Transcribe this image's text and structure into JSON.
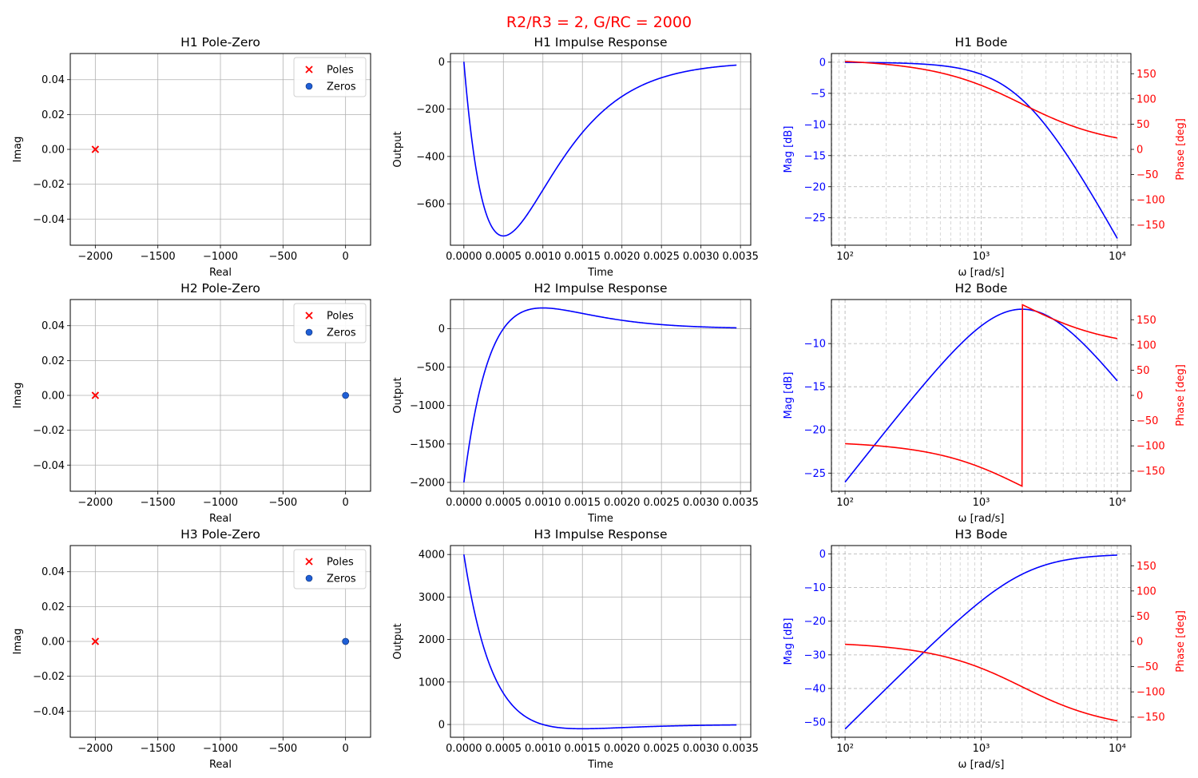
{
  "suptitle": "R2/R3 = 2, G/RC = 2000",
  "colors": {
    "mag": "#0000ff",
    "phase": "#ff0000",
    "pole": "#ff0000",
    "zero": "#1f5fd6",
    "grid": "#b0b0b0"
  },
  "chart_data": [
    {
      "id": "h1-pz",
      "type": "scatter",
      "title": "H1 Pole-Zero",
      "xlabel": "Real",
      "ylabel": "Imag",
      "xlim": [
        -2200,
        200
      ],
      "ylim": [
        -0.055,
        0.055
      ],
      "xticks": [
        -2000,
        -1500,
        -1000,
        -500,
        0
      ],
      "yticks": [
        -0.04,
        -0.02,
        0.0,
        0.02,
        0.04
      ],
      "xtick_labels": [
        "−2000",
        "−1500",
        "−1000",
        "−500",
        "0"
      ],
      "ytick_labels": [
        "−0.04",
        "−0.02",
        "0.00",
        "0.02",
        "0.04"
      ],
      "poles": [
        [
          -2000,
          0
        ],
        [
          -2000,
          0
        ]
      ],
      "zeros": [],
      "legend": {
        "placement": "top-right",
        "entries": [
          "Poles",
          "Zeros"
        ]
      },
      "grid": true
    },
    {
      "id": "h1-imp",
      "type": "line",
      "title": "H1 Impulse Response",
      "xlabel": "Time",
      "ylabel": "Output",
      "xlim": [
        -0.00017,
        0.00363
      ],
      "ylim": [
        -775,
        35
      ],
      "xticks": [
        0,
        0.0005,
        0.001,
        0.0015,
        0.002,
        0.0025,
        0.003,
        0.0035
      ],
      "xtick_labels": [
        "0.0000",
        "0.0005",
        "0.0010",
        "0.0015",
        "0.0020",
        "0.0025",
        "0.0030",
        "0.0035"
      ],
      "yticks": [
        -600,
        -400,
        -200,
        0
      ],
      "ytick_labels": [
        "−600",
        "−400",
        "−200",
        "0"
      ],
      "series": [
        {
          "fn": "-4e6*t*exp(-2000*t)",
          "t_end": 0.00345
        }
      ],
      "grid": true
    },
    {
      "id": "h1-bode",
      "type": "line",
      "title": "H1 Bode",
      "xlabel": "ω [rad/s]",
      "ylabel": "Mag [dB]",
      "y2label": "Phase [deg]",
      "xlog": true,
      "xlim": [
        79.4,
        12589
      ],
      "xticks": [
        100,
        1000,
        10000
      ],
      "xtick_labels": [
        "10²",
        "10³",
        "10⁴"
      ],
      "ylim": [
        -29.4,
        1.4
      ],
      "yticks": [
        -25,
        -20,
        -15,
        -10,
        -5,
        0
      ],
      "ytick_labels": [
        "−25",
        "−20",
        "−15",
        "−10",
        "−5",
        "0"
      ],
      "y2lim": [
        -190,
        190
      ],
      "y2ticks": [
        -150,
        -100,
        -50,
        0,
        50,
        100,
        150
      ],
      "y2tick_labels": [
        "−150",
        "−100",
        "−50",
        "0",
        "50",
        "100",
        "150"
      ],
      "series": [
        {
          "name": "",
          "axis": "y",
          "fn": "-20*log10(1+(w/2000)^2)"
        },
        {
          "name": "",
          "axis": "y2",
          "fn": "180-2*atan(w/2000)"
        }
      ],
      "grid": true
    },
    {
      "id": "h2-pz",
      "type": "scatter",
      "title": "H2 Pole-Zero",
      "xlabel": "Real",
      "ylabel": "Imag",
      "xlim": [
        -2200,
        200
      ],
      "ylim": [
        -0.055,
        0.055
      ],
      "xticks": [
        -2000,
        -1500,
        -1000,
        -500,
        0
      ],
      "yticks": [
        -0.04,
        -0.02,
        0.0,
        0.02,
        0.04
      ],
      "xtick_labels": [
        "−2000",
        "−1500",
        "−1000",
        "−500",
        "0"
      ],
      "ytick_labels": [
        "−0.04",
        "−0.02",
        "0.00",
        "0.02",
        "0.04"
      ],
      "poles": [
        [
          -2000,
          0
        ],
        [
          -2000,
          0
        ]
      ],
      "zeros": [
        [
          0,
          0
        ]
      ],
      "legend": {
        "placement": "top-right",
        "entries": [
          "Poles",
          "Zeros"
        ]
      },
      "grid": true
    },
    {
      "id": "h2-imp",
      "type": "line",
      "title": "H2 Impulse Response",
      "xlabel": "Time",
      "ylabel": "Output",
      "xlim": [
        -0.00017,
        0.00363
      ],
      "ylim": [
        -2115,
        380
      ],
      "xticks": [
        0,
        0.0005,
        0.001,
        0.0015,
        0.002,
        0.0025,
        0.003,
        0.0035
      ],
      "xtick_labels": [
        "0.0000",
        "0.0005",
        "0.0010",
        "0.0015",
        "0.0020",
        "0.0025",
        "0.0030",
        "0.0035"
      ],
      "yticks": [
        -2000,
        -1500,
        -1000,
        -500,
        0
      ],
      "ytick_labels": [
        "−2000",
        "−1500",
        "−1000",
        "−500",
        "0"
      ],
      "series": [
        {
          "fn": "(-2000+4e6*t)*exp(-2000*t)",
          "t_end": 0.00345
        }
      ],
      "grid": true
    },
    {
      "id": "h2-bode",
      "type": "line",
      "title": "H2 Bode",
      "xlabel": "ω [rad/s]",
      "ylabel": "Mag [dB]",
      "y2label": "Phase [deg]",
      "xlog": true,
      "xlim": [
        79.4,
        12589
      ],
      "xticks": [
        100,
        1000,
        10000
      ],
      "xtick_labels": [
        "10²",
        "10³",
        "10⁴"
      ],
      "ylim": [
        -27.1,
        -4.9
      ],
      "yticks": [
        -25,
        -20,
        -15,
        -10
      ],
      "ytick_labels": [
        "−25",
        "−20",
        "−15",
        "−10"
      ],
      "y2lim": [
        -190,
        190
      ],
      "y2ticks": [
        -150,
        -100,
        -50,
        0,
        50,
        100,
        150
      ],
      "y2tick_labels": [
        "−150",
        "−100",
        "−50",
        "0",
        "50",
        "100",
        "150"
      ],
      "series": [
        {
          "name": "",
          "axis": "y",
          "fn": "20*log10(2000*w/(w^2+2000^2))"
        },
        {
          "name": "",
          "axis": "y2",
          "fn": "wrap(270-2*atan(w/2000))"
        }
      ],
      "grid": true
    },
    {
      "id": "h3-pz",
      "type": "scatter",
      "title": "H3 Pole-Zero",
      "xlabel": "Real",
      "ylabel": "Imag",
      "xlim": [
        -2200,
        200
      ],
      "ylim": [
        -0.055,
        0.055
      ],
      "xticks": [
        -2000,
        -1500,
        -1000,
        -500,
        0
      ],
      "yticks": [
        -0.04,
        -0.02,
        0.0,
        0.02,
        0.04
      ],
      "xtick_labels": [
        "−2000",
        "−1500",
        "−1000",
        "−500",
        "0"
      ],
      "ytick_labels": [
        "−0.04",
        "−0.02",
        "0.00",
        "0.02",
        "0.04"
      ],
      "poles": [
        [
          -2000,
          0
        ],
        [
          -2000,
          0
        ]
      ],
      "zeros": [
        [
          0,
          0
        ],
        [
          0,
          0
        ]
      ],
      "legend": {
        "placement": "top-right",
        "entries": [
          "Poles",
          "Zeros"
        ]
      },
      "grid": true
    },
    {
      "id": "h3-imp",
      "type": "line",
      "title": "H3 Impulse Response",
      "xlabel": "Time",
      "ylabel": "Output",
      "xlim": [
        -0.00017,
        0.00363
      ],
      "ylim": [
        -300,
        4210
      ],
      "xticks": [
        0,
        0.0005,
        0.001,
        0.0015,
        0.002,
        0.0025,
        0.003,
        0.0035
      ],
      "xtick_labels": [
        "0.0000",
        "0.0005",
        "0.0010",
        "0.0015",
        "0.0020",
        "0.0025",
        "0.0030",
        "0.0035"
      ],
      "yticks": [
        0,
        1000,
        2000,
        3000,
        4000
      ],
      "ytick_labels": [
        "0",
        "1000",
        "2000",
        "3000",
        "4000"
      ],
      "series": [
        {
          "fn": "(4000-4e6*t)*exp(-2000*t)",
          "t_end": 0.00345
        }
      ],
      "grid": true
    },
    {
      "id": "h3-bode",
      "type": "line",
      "title": "H3 Bode",
      "xlabel": "ω [rad/s]",
      "ylabel": "Mag [dB]",
      "y2label": "Phase [deg]",
      "xlog": true,
      "xlim": [
        79.4,
        12589
      ],
      "xticks": [
        100,
        1000,
        10000
      ],
      "xtick_labels": [
        "10²",
        "10³",
        "10⁴"
      ],
      "ylim": [
        -54.5,
        2.5
      ],
      "yticks": [
        -50,
        -40,
        -30,
        -20,
        -10,
        0
      ],
      "ytick_labels": [
        "−50",
        "−40",
        "−30",
        "−20",
        "−10",
        "0"
      ],
      "y2lim": [
        -190,
        190
      ],
      "y2ticks": [
        -150,
        -100,
        -50,
        0,
        50,
        100,
        150
      ],
      "y2tick_labels": [
        "−150",
        "−100",
        "−50",
        "0",
        "50",
        "100",
        "150"
      ],
      "series": [
        {
          "name": "",
          "axis": "y",
          "fn": "20*log10(w^2/(w^2+2000^2))"
        },
        {
          "name": "",
          "axis": "y2",
          "fn": "-2*atan(w/2000)"
        }
      ],
      "grid": true
    }
  ]
}
